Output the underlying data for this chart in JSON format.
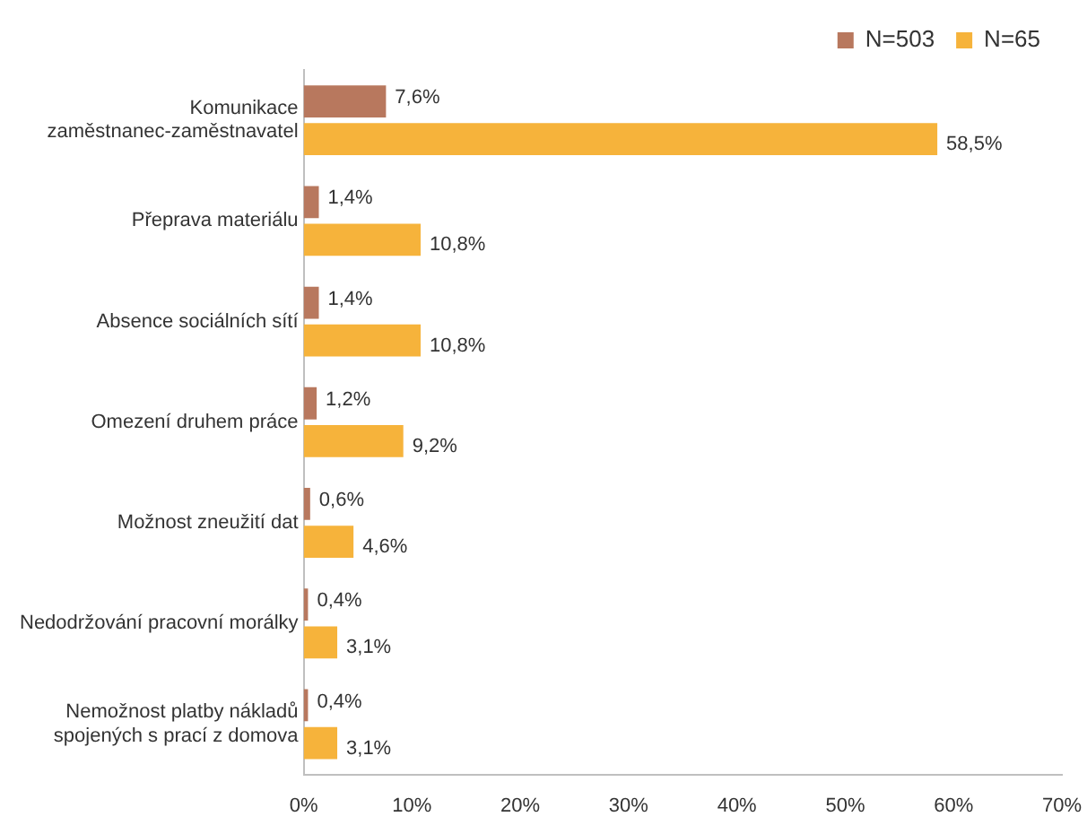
{
  "chart_data": {
    "type": "bar",
    "orientation": "horizontal",
    "categories": [
      "Komunikace zaměstnanec-zaměstnavatel",
      "Přeprava materiálu",
      "Absence sociálních sítí",
      "Omezení druhem práce",
      "Možnost zneužití dat",
      "Nedodržování pracovní morálky",
      "Nemožnost platby nákladů spojených s prací z domova"
    ],
    "series": [
      {
        "name": "N=503",
        "color": "#b8785e",
        "values": [
          7.6,
          1.4,
          1.4,
          1.2,
          0.6,
          0.4,
          0.4
        ],
        "value_labels": [
          "7,6%",
          "1,4%",
          "1,4%",
          "1,2%",
          "0,6%",
          "0,4%",
          "0,4%"
        ]
      },
      {
        "name": "N=65",
        "color": "#f6b33b",
        "values": [
          58.5,
          10.8,
          10.8,
          9.2,
          4.6,
          3.1,
          3.1
        ],
        "value_labels": [
          "58,5%",
          "10,8%",
          "10,8%",
          "9,2%",
          "4,6%",
          "3,1%",
          "3,1%"
        ]
      }
    ],
    "xlim": [
      0,
      70
    ],
    "xticks": [
      {
        "value": 0,
        "label": "0%"
      },
      {
        "value": 10,
        "label": "10%"
      },
      {
        "value": 20,
        "label": "20%"
      },
      {
        "value": 30,
        "label": "30%"
      },
      {
        "value": 40,
        "label": "40%"
      },
      {
        "value": 50,
        "label": "50%"
      },
      {
        "value": 60,
        "label": "60%"
      },
      {
        "value": 70,
        "label": "70%"
      }
    ],
    "grid": false,
    "legend": "top right"
  }
}
